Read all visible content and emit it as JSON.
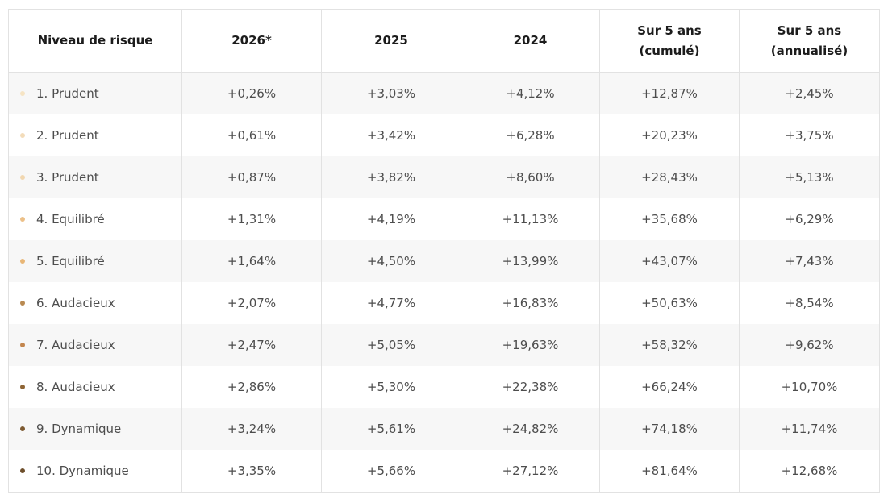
{
  "table": {
    "headers": [
      {
        "lines": [
          "Niveau de risque"
        ]
      },
      {
        "lines": [
          "2026*"
        ]
      },
      {
        "lines": [
          "2025"
        ]
      },
      {
        "lines": [
          "2024"
        ]
      },
      {
        "lines": [
          "Sur 5 ans",
          "(cumulé)"
        ]
      },
      {
        "lines": [
          "Sur 5 ans",
          "(annualisé)"
        ]
      }
    ],
    "rows": [
      {
        "label": "1. Prudent",
        "dot_color": "#f6e4c4",
        "values": [
          "+0,26%",
          "+3,03%",
          "+4,12%",
          "+12,87%",
          "+2,45%"
        ]
      },
      {
        "label": "2. Prudent",
        "dot_color": "#f3dcba",
        "values": [
          "+0,61%",
          "+3,42%",
          "+6,28%",
          "+20,23%",
          "+3,75%"
        ]
      },
      {
        "label": "3. Prudent",
        "dot_color": "#f1d7b0",
        "values": [
          "+0,87%",
          "+3,82%",
          "+8,60%",
          "+28,43%",
          "+5,13%"
        ]
      },
      {
        "label": "4. Equilibré",
        "dot_color": "#ecc088",
        "values": [
          "+1,31%",
          "+4,19%",
          "+11,13%",
          "+35,68%",
          "+6,29%"
        ]
      },
      {
        "label": "5. Equilibré",
        "dot_color": "#e8b676",
        "values": [
          "+1,64%",
          "+4,50%",
          "+13,99%",
          "+43,07%",
          "+7,43%"
        ]
      },
      {
        "label": "6. Audacieux",
        "dot_color": "#b98a52",
        "values": [
          "+2,07%",
          "+4,77%",
          "+16,83%",
          "+50,63%",
          "+8,54%"
        ]
      },
      {
        "label": "7. Audacieux",
        "dot_color": "#c3864e",
        "values": [
          "+2,47%",
          "+5,05%",
          "+19,63%",
          "+58,32%",
          "+9,62%"
        ]
      },
      {
        "label": "8. Audacieux",
        "dot_color": "#8f6535",
        "values": [
          "+2,86%",
          "+5,30%",
          "+22,38%",
          "+66,24%",
          "+10,70%"
        ]
      },
      {
        "label": "9. Dynamique",
        "dot_color": "#7d5a31",
        "values": [
          "+3,24%",
          "+5,61%",
          "+24,82%",
          "+74,18%",
          "+11,74%"
        ]
      },
      {
        "label": "10. Dynamique",
        "dot_color": "#6e4f2c",
        "values": [
          "+3,35%",
          "+5,66%",
          "+27,12%",
          "+81,64%",
          "+12,68%"
        ]
      }
    ]
  }
}
